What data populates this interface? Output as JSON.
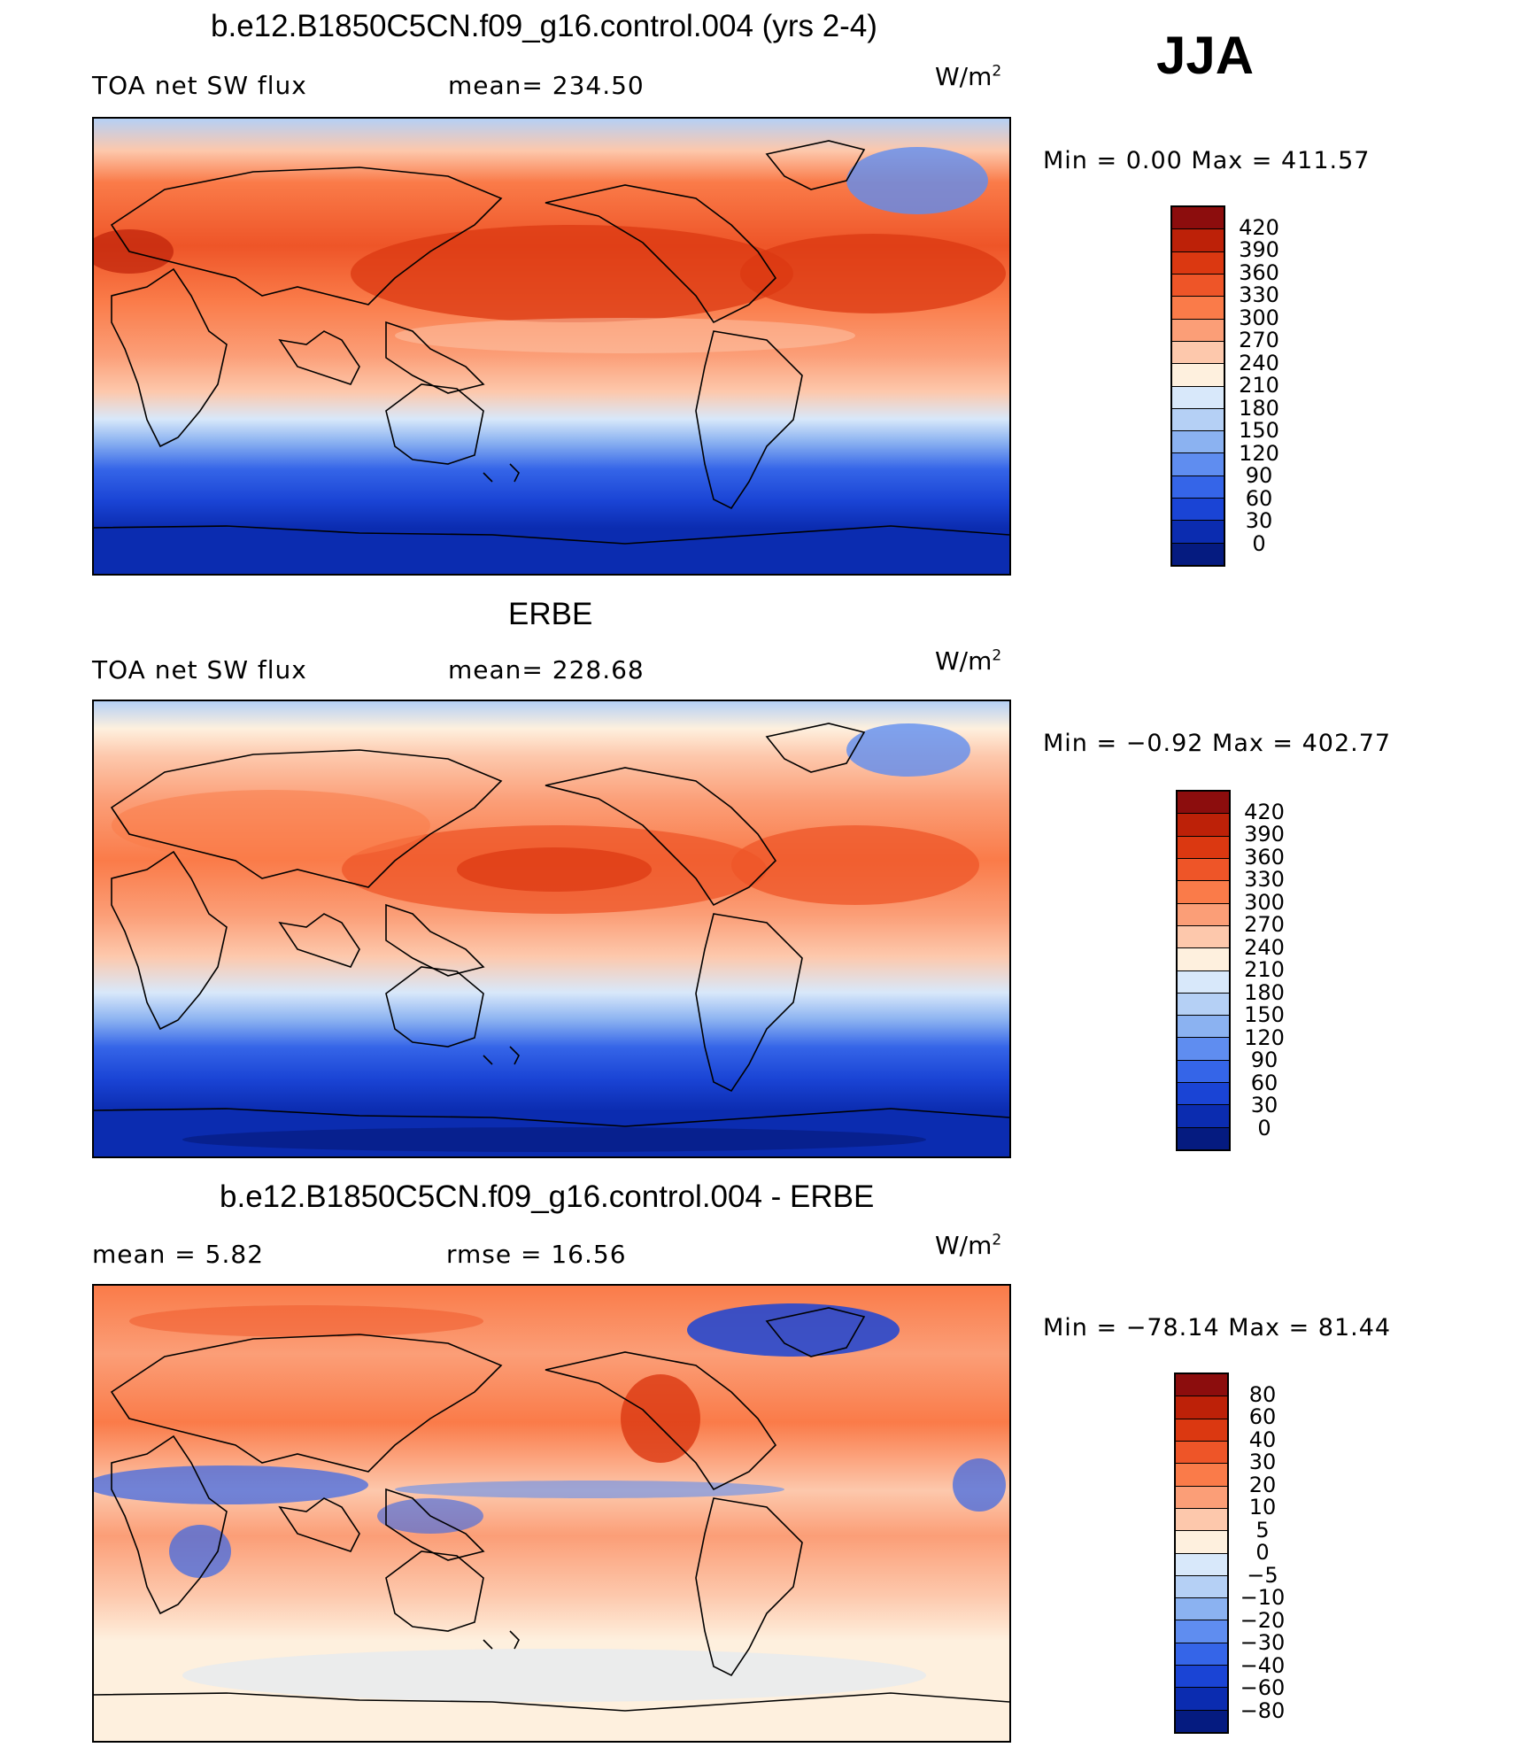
{
  "season": "JJA",
  "units_base": "W/m",
  "units_exp": "2",
  "panels": [
    {
      "title": "b.e12.B1850C5CN.f09_g16.control.004 (yrs 2-4)",
      "left_text": "TOA net SW flux",
      "mid_text": "mean= 234.50",
      "minmax": "Min =    0.00 Max = 411.57",
      "levels": [
        "420",
        "390",
        "360",
        "330",
        "300",
        "270",
        "240",
        "210",
        "180",
        "150",
        "120",
        "90",
        "60",
        "30",
        "0"
      ],
      "colors": [
        "#8c0d0d",
        "#bd2108",
        "#db3811",
        "#ee5528",
        "#fa7b49",
        "#fb9e77",
        "#fdc8ac",
        "#fef0de",
        "#d8e8fa",
        "#b5d0f5",
        "#8bb2f1",
        "#5f8df0",
        "#3565e8",
        "#1a44d5",
        "#0b2cb0",
        "#051b80"
      ]
    },
    {
      "title": "ERBE",
      "left_text": "TOA net SW flux",
      "mid_text": "mean= 228.68",
      "minmax": "Min =  −0.92 Max = 402.77",
      "levels": [
        "420",
        "390",
        "360",
        "330",
        "300",
        "270",
        "240",
        "210",
        "180",
        "150",
        "120",
        "90",
        "60",
        "30",
        "0"
      ],
      "colors": [
        "#8c0d0d",
        "#bd2108",
        "#db3811",
        "#ee5528",
        "#fa7b49",
        "#fb9e77",
        "#fdc8ac",
        "#fef0de",
        "#d8e8fa",
        "#b5d0f5",
        "#8bb2f1",
        "#5f8df0",
        "#3565e8",
        "#1a44d5",
        "#0b2cb0",
        "#051b80"
      ]
    },
    {
      "title": "b.e12.B1850C5CN.f09_g16.control.004 - ERBE",
      "left_text": "mean =    5.82",
      "mid_text": "rmse =   16.56",
      "minmax": "Min = −78.14 Max =   81.44",
      "levels": [
        "80",
        "60",
        "40",
        "30",
        "20",
        "10",
        "5",
        "0",
        "−5",
        "−10",
        "−20",
        "−30",
        "−40",
        "−60",
        "−80"
      ],
      "colors": [
        "#8c0d0d",
        "#bd2108",
        "#db3811",
        "#ee5528",
        "#fa7b49",
        "#fb9e77",
        "#fdc8ac",
        "#fef0de",
        "#d8e8fa",
        "#b5d0f5",
        "#8bb2f1",
        "#5f8df0",
        "#3565e8",
        "#1a44d5",
        "#0b2cb0",
        "#051b80"
      ]
    }
  ]
}
